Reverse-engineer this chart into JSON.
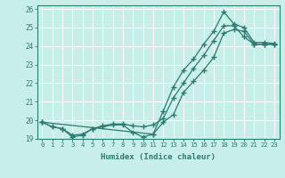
{
  "xlabel": "Humidex (Indice chaleur)",
  "background_color": "#c8eeea",
  "grid_color": "#ffffff",
  "line_color": "#2d7a6e",
  "xlim": [
    -0.5,
    23.5
  ],
  "ylim": [
    19,
    26.2
  ],
  "xticks": [
    0,
    1,
    2,
    3,
    4,
    5,
    6,
    7,
    8,
    9,
    10,
    11,
    12,
    13,
    14,
    15,
    16,
    17,
    18,
    19,
    20,
    21,
    22,
    23
  ],
  "yticks": [
    19,
    20,
    21,
    22,
    23,
    24,
    25,
    26
  ],
  "series": [
    {
      "x": [
        0,
        1,
        2,
        3,
        4,
        5,
        6,
        7,
        8,
        9,
        10,
        11,
        12,
        13,
        14,
        15,
        16,
        17,
        18,
        19,
        20,
        21,
        22,
        23
      ],
      "y": [
        19.9,
        19.65,
        19.55,
        19.1,
        19.2,
        19.55,
        19.65,
        19.75,
        19.75,
        19.35,
        19.1,
        19.25,
        19.9,
        20.3,
        21.5,
        22.1,
        22.7,
        23.4,
        24.7,
        24.9,
        24.8,
        24.1,
        24.1,
        24.1
      ]
    },
    {
      "x": [
        0,
        1,
        2,
        3,
        4,
        5,
        6,
        7,
        8,
        9,
        10,
        11,
        12,
        13,
        14,
        15,
        16,
        17,
        18,
        19,
        20,
        21,
        22,
        23
      ],
      "y": [
        19.9,
        19.65,
        19.55,
        19.2,
        19.25,
        19.55,
        19.7,
        19.8,
        19.8,
        19.7,
        19.65,
        19.75,
        20.1,
        21.2,
        22.0,
        22.8,
        23.5,
        24.3,
        25.1,
        25.1,
        24.5,
        24.1,
        24.1,
        24.1
      ]
    },
    {
      "x": [
        0,
        11,
        12,
        13,
        14,
        15,
        16,
        17,
        18,
        19,
        20,
        21,
        22,
        23
      ],
      "y": [
        19.9,
        19.25,
        20.5,
        21.8,
        22.7,
        23.3,
        24.1,
        24.8,
        25.85,
        25.2,
        25.0,
        24.2,
        24.2,
        24.15
      ]
    }
  ]
}
